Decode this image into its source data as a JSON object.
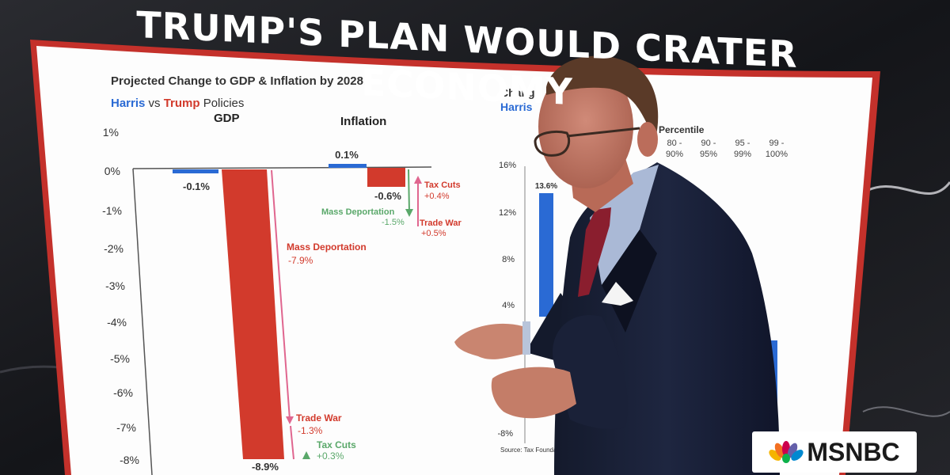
{
  "headline": "TRUMP'S PLAN WOULD CRATER ECONOMY",
  "network": "MSNBC",
  "colors": {
    "harris": "#2a6ad4",
    "trump": "#d23a2c",
    "green": "#5aa86a"
  },
  "left_chart": {
    "title": "Projected Change to GDP & Inflation by 2028:",
    "subtitle_harris": "Harris",
    "subtitle_vs": " vs ",
    "subtitle_trump": "Trump",
    "subtitle_end": " Policies",
    "gdp_header": "GDP",
    "inflation_header": "Inflation",
    "y_ticks": [
      "1%",
      "0%",
      "-1%",
      "-2%",
      "-3%",
      "-4%",
      "-5%",
      "-6%",
      "-7%",
      "-8%"
    ],
    "gdp_harris_label": "-0.1%",
    "gdp_trump_label": "-8.9%",
    "inf_harris_label": "0.1%",
    "inf_trump_label": "-0.6%",
    "mass_dep_gdp": "Mass Deportation",
    "mass_dep_gdp_val": "-7.9%",
    "trade_war_gdp": "Trade War",
    "trade_war_gdp_val": "-1.3%",
    "tax_cuts_gdp": "Tax Cuts",
    "tax_cuts_gdp_val": "+0.3%",
    "tax_cuts_inf": "Tax Cuts",
    "tax_cuts_inf_val": "+0.4%",
    "mass_dep_inf": "Mass Deportation",
    "mass_dep_inf_val": "-1.5%",
    "trade_war_inf": "Trade War",
    "trade_war_inf_val": "+0.5%"
  },
  "right_chart": {
    "title": "Chang",
    "subtitle": "Harris",
    "percentile_label": "e Percentile",
    "columns": [
      "80 -",
      "90%",
      "90 -",
      "95%",
      "95 -",
      "99%",
      "99 -",
      "100%"
    ],
    "y_ticks": [
      "16%",
      "12%",
      "8%",
      "4%",
      "-8%"
    ],
    "bar_label": "13.6%",
    "source": "Source: Tax Foundatio"
  }
}
